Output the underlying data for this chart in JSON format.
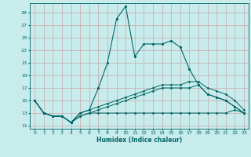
{
  "xlabel": "Humidex (Indice chaleur)",
  "bg_color": "#c8ecec",
  "grid_color": "#c8a8a8",
  "line_color": "#006666",
  "xlim": [
    -0.5,
    23.5
  ],
  "ylim": [
    10.5,
    30.5
  ],
  "yticks": [
    11,
    13,
    15,
    17,
    19,
    21,
    23,
    25,
    27,
    29
  ],
  "xticks": [
    0,
    1,
    2,
    3,
    4,
    5,
    6,
    7,
    8,
    9,
    10,
    11,
    12,
    13,
    14,
    15,
    16,
    17,
    18,
    19,
    20,
    21,
    22,
    23
  ],
  "series": [
    {
      "x": [
        0,
        1,
        2,
        3,
        4,
        5,
        6,
        7,
        8,
        9,
        10,
        11,
        12,
        13,
        14,
        15,
        16,
        17,
        18,
        19,
        20,
        21,
        22,
        23
      ],
      "y": [
        15,
        13,
        12.5,
        12.5,
        11.5,
        12.5,
        13,
        13,
        13,
        13,
        13,
        13,
        13,
        13,
        13,
        13,
        13,
        13,
        13,
        13,
        13,
        13,
        13.5,
        13
      ],
      "lw": 0.7,
      "ls": "-",
      "marker": ".",
      "ms": 2.0
    },
    {
      "x": [
        0,
        1,
        2,
        3,
        4,
        5,
        6,
        7,
        8,
        9,
        10,
        11,
        12,
        13,
        14,
        15,
        16,
        17,
        18,
        19,
        20,
        21,
        22,
        23
      ],
      "y": [
        15,
        13,
        12.5,
        12.5,
        11.5,
        12.5,
        13,
        13.5,
        14,
        14.5,
        15,
        15.5,
        16,
        16.5,
        17,
        17,
        17,
        17,
        17.5,
        16,
        15.5,
        15,
        14,
        13
      ],
      "lw": 0.7,
      "ls": "-",
      "marker": ".",
      "ms": 2.0
    },
    {
      "x": [
        0,
        1,
        2,
        3,
        4,
        5,
        6,
        7,
        8,
        9,
        10,
        11,
        12,
        13,
        14,
        15,
        16,
        17,
        18,
        19,
        20,
        21,
        22,
        23
      ],
      "y": [
        15,
        13,
        12.5,
        12.5,
        11.5,
        13,
        13.5,
        14,
        14.5,
        15,
        15.5,
        16,
        16.5,
        17,
        17.5,
        17.5,
        17.5,
        18,
        18,
        17,
        16.5,
        16,
        15,
        13.5
      ],
      "lw": 0.7,
      "ls": "-",
      "marker": ".",
      "ms": 2.0
    },
    {
      "x": [
        0,
        1,
        2,
        3,
        4,
        5,
        6,
        7,
        8,
        9,
        10,
        11,
        12,
        13,
        14,
        15,
        16,
        17,
        18,
        19,
        20,
        21,
        22,
        23
      ],
      "y": [
        15,
        13,
        12.5,
        12.5,
        11.5,
        13,
        13.5,
        17,
        21,
        28,
        30,
        22,
        24,
        24,
        24,
        24.5,
        23.5,
        20,
        17.5,
        16,
        15.5,
        15,
        14,
        13
      ],
      "lw": 0.8,
      "ls": "-",
      "marker": ".",
      "ms": 2.5
    }
  ]
}
